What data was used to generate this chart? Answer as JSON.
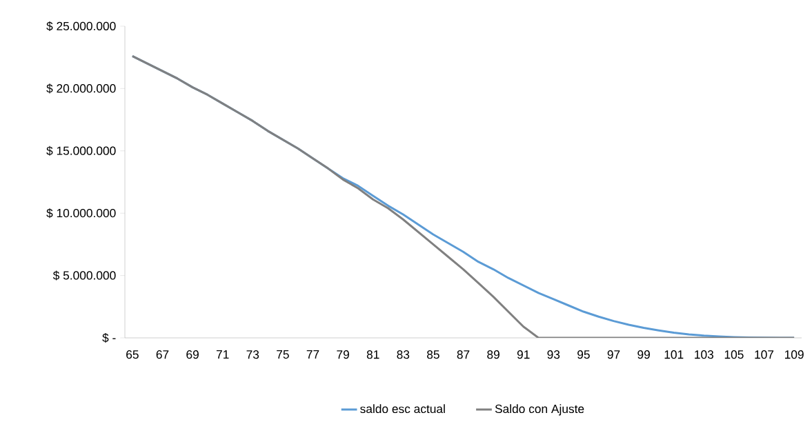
{
  "chart_data": {
    "type": "line",
    "categories": [
      "65",
      null,
      "67",
      null,
      "69",
      null,
      "71",
      null,
      "73",
      null,
      "75",
      null,
      "77",
      null,
      "79",
      null,
      "81",
      null,
      "83",
      null,
      "85",
      null,
      "87",
      null,
      "89",
      null,
      "91",
      null,
      "93",
      null,
      "95",
      null,
      "97",
      null,
      "99",
      null,
      "101",
      null,
      "103",
      null,
      "105",
      null,
      "107",
      null,
      "109"
    ],
    "series": [
      {
        "name": "saldo esc actual",
        "color": "#5b9bd5",
        "values": [
          22600000,
          22000000,
          21400000,
          20800000,
          20100000,
          19500000,
          18800000,
          18100000,
          17400000,
          16600000,
          15900000,
          15200000,
          14400000,
          13600000,
          12800000,
          12200000,
          11400000,
          10600000,
          9900000,
          9100000,
          8300000,
          7600000,
          6900000,
          6100000,
          5500000,
          4800000,
          4200000,
          3600000,
          3100000,
          2600000,
          2100000,
          1700000,
          1350000,
          1050000,
          800000,
          600000,
          420000,
          280000,
          180000,
          110000,
          60000,
          30000,
          10000,
          0,
          0
        ]
      },
      {
        "name": "Saldo con Ajuste",
        "color": "#808080",
        "values": [
          22600000,
          22000000,
          21400000,
          20800000,
          20100000,
          19500000,
          18800000,
          18100000,
          17400000,
          16600000,
          15900000,
          15200000,
          14400000,
          13600000,
          12700000,
          12000000,
          11100000,
          10400000,
          9500000,
          8500000,
          7500000,
          6500000,
          5500000,
          4400000,
          3300000,
          2100000,
          900000,
          0,
          0,
          0,
          0,
          0,
          0,
          0,
          0,
          0,
          0,
          0,
          0,
          0,
          0,
          0,
          0,
          0,
          0
        ]
      }
    ],
    "ylim": [
      0,
      25000000
    ],
    "yticks": [
      {
        "value": 0,
        "label": "$ -"
      },
      {
        "value": 5000000,
        "label": "$ 5.000.000"
      },
      {
        "value": 10000000,
        "label": "$ 10.000.000"
      },
      {
        "value": 15000000,
        "label": "$ 15.000.000"
      },
      {
        "value": 20000000,
        "label": "$ 20.000.000"
      },
      {
        "value": 25000000,
        "label": "$ 25.000.000"
      }
    ],
    "legend": "bottom"
  }
}
